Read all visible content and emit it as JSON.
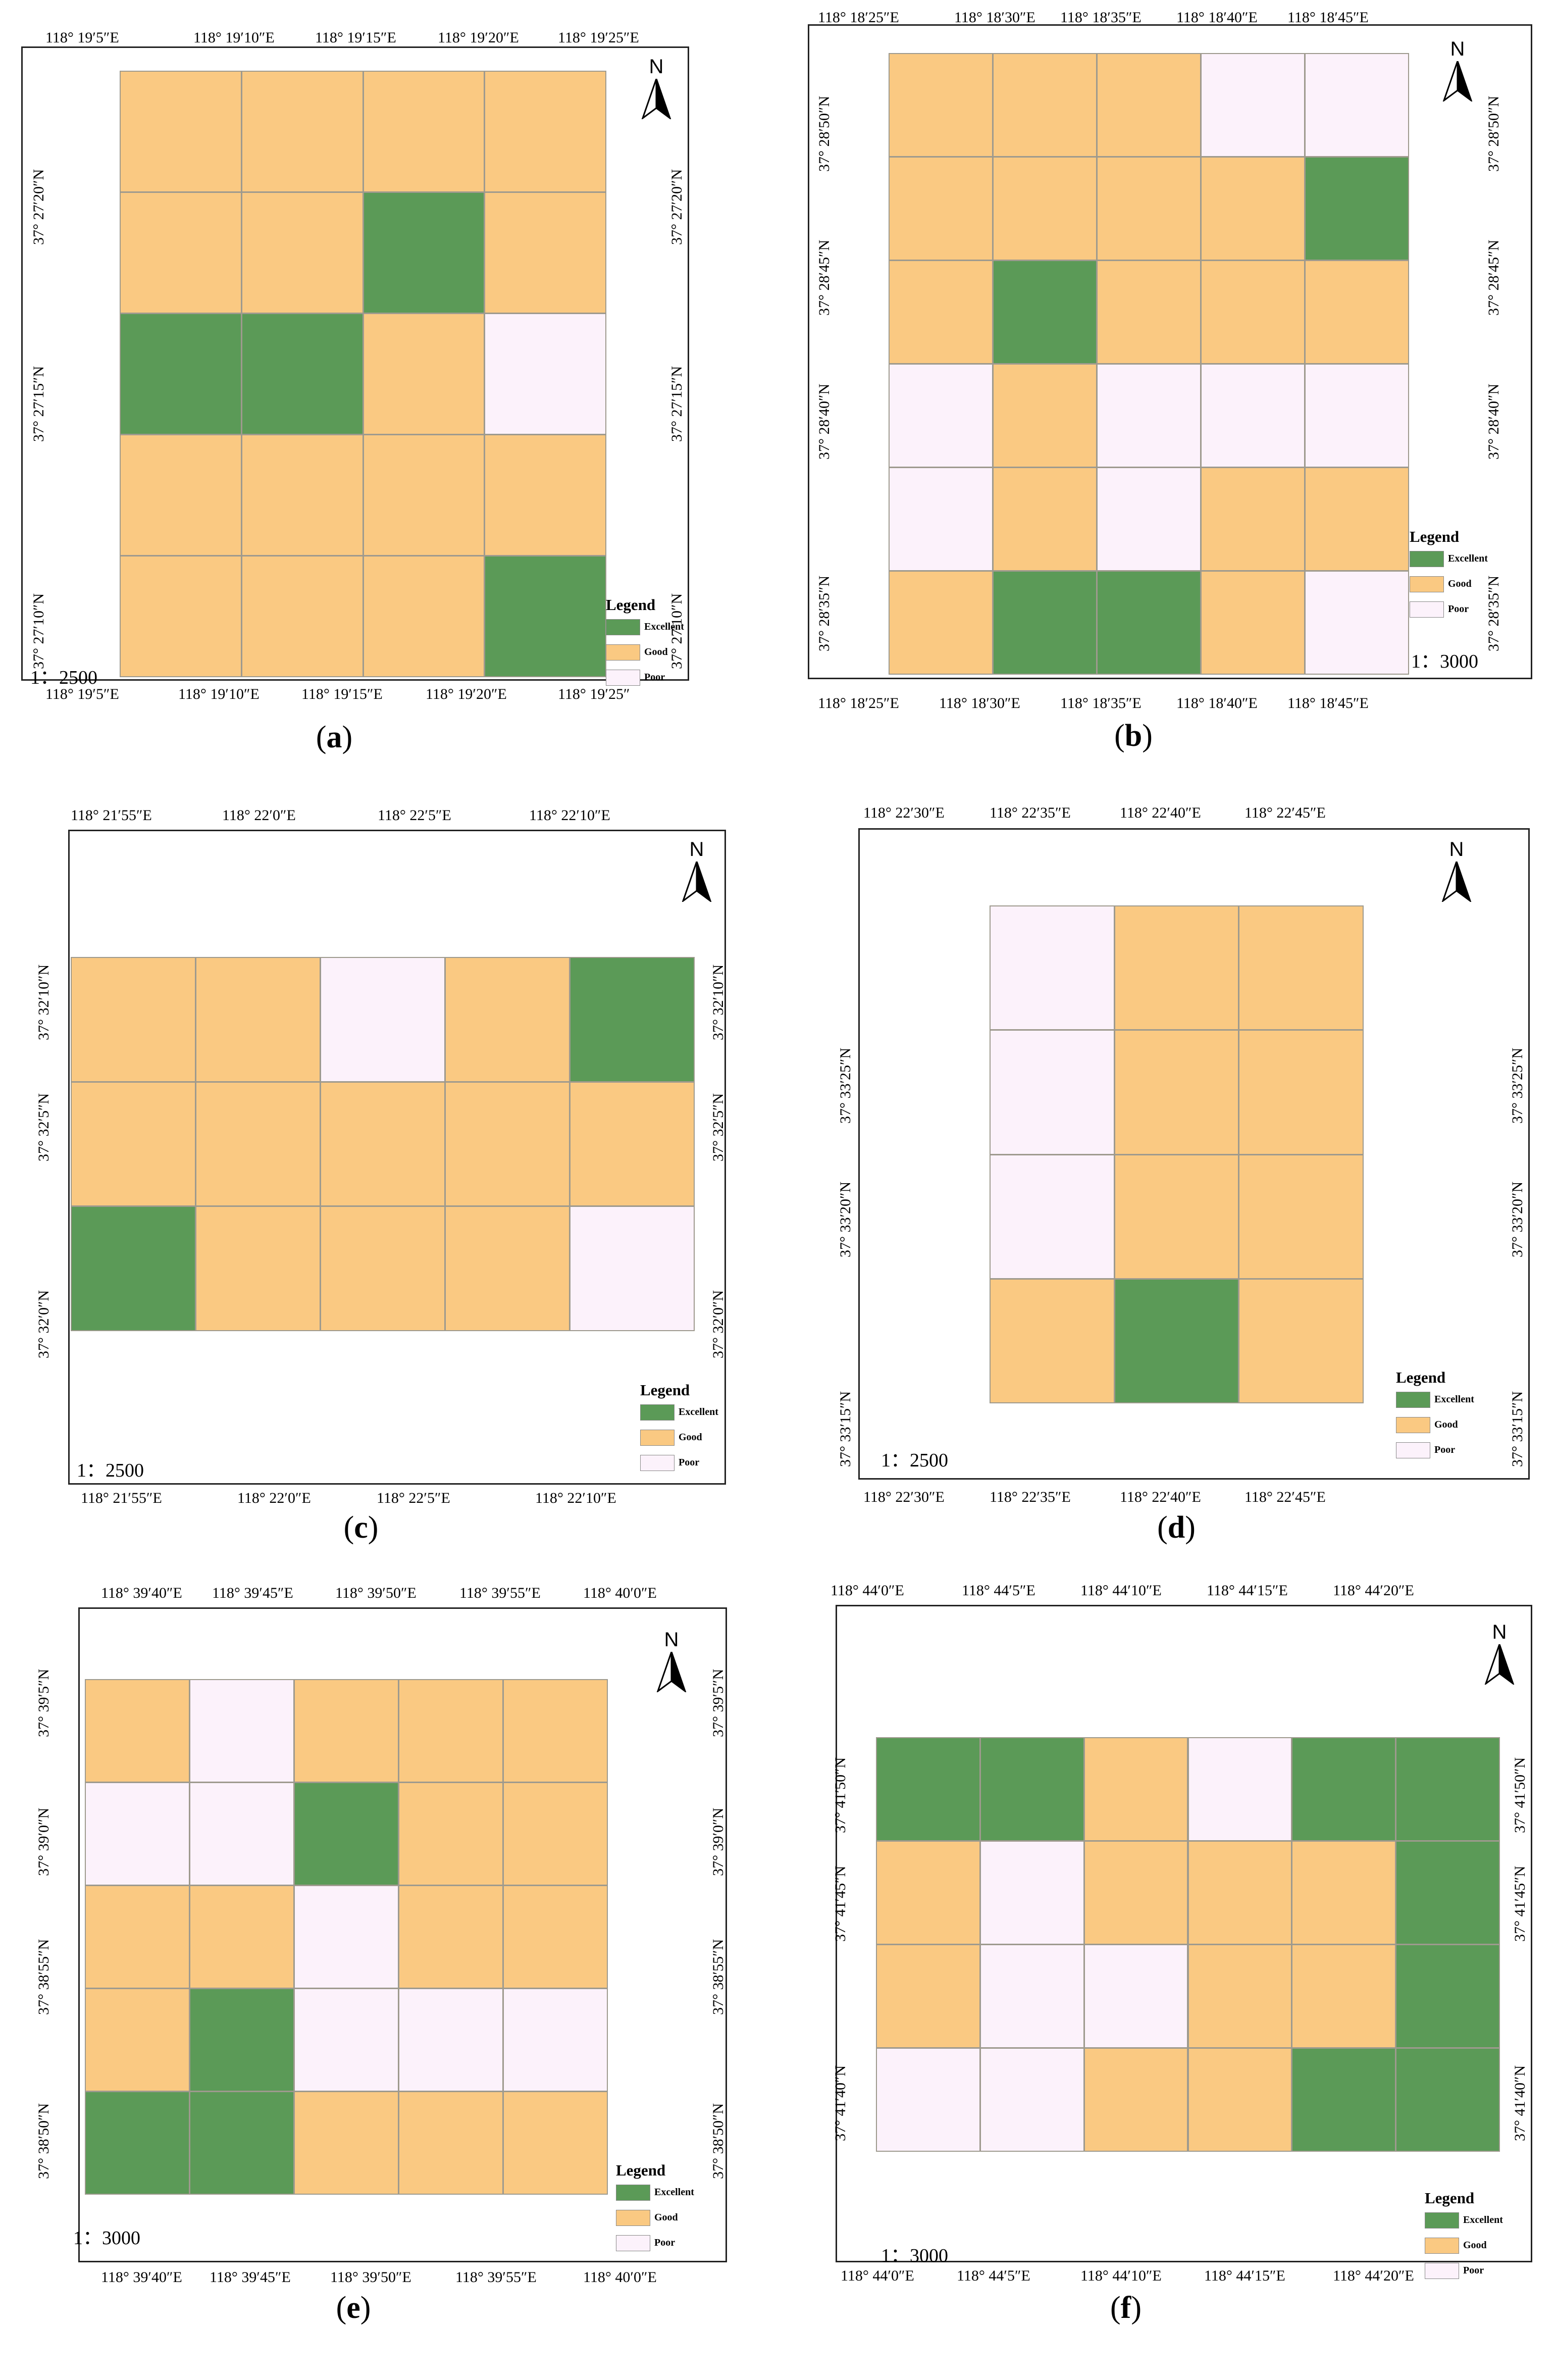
{
  "colors": {
    "Excellent": "#5b9a57",
    "Good": "#fac982",
    "Poor": "#fcf2fb"
  },
  "legend": {
    "title": "Legend",
    "items": [
      "Excellent",
      "Good",
      "Poor"
    ]
  },
  "north_label": "N",
  "panels": [
    {
      "caption": "(a)",
      "scale": "1：2500",
      "top_ticks": [
        "118° 19′5″E",
        "118° 19′10″E",
        "118° 19′15″E",
        "118° 19′20″E",
        "118° 19′25″E"
      ],
      "bottom_ticks": [
        "118° 19′5″E",
        "118° 19′10″E",
        "118° 19′15″E",
        "118° 19′20″E",
        "118° 19′25″"
      ],
      "left_ticks": [
        "37° 27′20″N",
        "37° 27′15″N",
        "37° 27′10″N"
      ],
      "right_ticks": [
        "37° 27′20″N",
        "37° 27′15″N",
        "37° 27′10″N"
      ],
      "grid": [
        [
          "Good",
          "Good",
          "Good",
          "Good"
        ],
        [
          "Good",
          "Good",
          "Excellent",
          "Good"
        ],
        [
          "Excellent",
          "Excellent",
          "Good",
          "Poor"
        ],
        [
          "Good",
          "Good",
          "Good",
          "Good"
        ],
        [
          "Good",
          "Good",
          "Good",
          "Excellent"
        ]
      ]
    },
    {
      "caption": "(b)",
      "scale": "1：3000",
      "top_ticks": [
        "118° 18′25″E",
        "118° 18′30″E",
        "118° 18′35″E",
        "118° 18′40″E",
        "118° 18′45″E"
      ],
      "bottom_ticks": [
        "118° 18′25″E",
        "118° 18′30″E",
        "118° 18′35″E",
        "118° 18′40″E",
        "118° 18′45″E"
      ],
      "left_ticks": [
        "37° 28′50″N",
        "37° 28′45″N",
        "37° 28′40″N",
        "37° 28′35″N"
      ],
      "right_ticks": [
        "37° 28′50″N",
        "37° 28′45″N",
        "37° 28′40″N",
        "37° 28′35″N"
      ],
      "grid": [
        [
          "Good",
          "Good",
          "Good",
          "Poor",
          "Poor"
        ],
        [
          "Good",
          "Good",
          "Good",
          "Good",
          "Excellent"
        ],
        [
          "Good",
          "Excellent",
          "Good",
          "Good",
          "Good"
        ],
        [
          "Poor",
          "Good",
          "Poor",
          "Poor",
          "Poor"
        ],
        [
          "Poor",
          "Good",
          "Poor",
          "Good",
          "Good"
        ],
        [
          "Good",
          "Excellent",
          "Excellent",
          "Good",
          "Poor"
        ]
      ]
    },
    {
      "caption": "(c)",
      "scale": "1：2500",
      "top_ticks": [
        "118° 21′55″E",
        "118° 22′0″E",
        "118° 22′5″E",
        "118° 22′10″E"
      ],
      "bottom_ticks": [
        "118° 21′55″E",
        "118° 22′0″E",
        "118° 22′5″E",
        "118° 22′10″E"
      ],
      "left_ticks": [
        "37° 32′10″N",
        "37° 32′5″N",
        "37° 32′0″N"
      ],
      "right_ticks": [
        "37° 32′10″N",
        "37° 32′5″N",
        "37° 32′0″N"
      ],
      "grid": [
        [
          "Good",
          "Good",
          "Poor",
          "Good",
          "Excellent"
        ],
        [
          "Good",
          "Good",
          "Good",
          "Good",
          "Good"
        ],
        [
          "Excellent",
          "Good",
          "Good",
          "Good",
          "Poor"
        ]
      ]
    },
    {
      "caption": "(d)",
      "scale": "1：2500",
      "top_ticks": [
        "118° 22′30″E",
        "118° 22′35″E",
        "118° 22′40″E",
        "118° 22′45″E"
      ],
      "bottom_ticks": [
        "118° 22′30″E",
        "118° 22′35″E",
        "118° 22′40″E",
        "118° 22′45″E"
      ],
      "left_ticks": [
        "37° 33′25″N",
        "37° 33′20″N",
        "37° 33′15″N"
      ],
      "right_ticks": [
        "37° 33′25″N",
        "37° 33′20″N",
        "37° 33′15″N"
      ],
      "grid": [
        [
          "Poor",
          "Good",
          "Good"
        ],
        [
          "Poor",
          "Good",
          "Good"
        ],
        [
          "Poor",
          "Good",
          "Good"
        ],
        [
          "Good",
          "Excellent",
          "Good"
        ]
      ]
    },
    {
      "caption": "(e)",
      "scale": "1：3000",
      "top_ticks": [
        "118° 39′40″E",
        "118° 39′45″E",
        "118° 39′50″E",
        "118° 39′55″E",
        "118° 40′0″E"
      ],
      "bottom_ticks": [
        "118° 39′40″E",
        "118° 39′45″E",
        "118° 39′50″E",
        "118° 39′55″E",
        "118° 40′0″E"
      ],
      "left_ticks": [
        "37° 39′5″N",
        "37° 39′0″N",
        "37° 38′55″N",
        "37° 38′50″N"
      ],
      "right_ticks": [
        "37° 39′5″N",
        "37° 39′0″N",
        "37° 38′55″N",
        "37° 38′50″N"
      ],
      "grid": [
        [
          "Good",
          "Poor",
          "Good",
          "Good",
          "Good"
        ],
        [
          "Poor",
          "Poor",
          "Excellent",
          "Good",
          "Good"
        ],
        [
          "Good",
          "Good",
          "Poor",
          "Good",
          "Good"
        ],
        [
          "Good",
          "Excellent",
          "Poor",
          "Poor",
          "Poor"
        ],
        [
          "Excellent",
          "Excellent",
          "Good",
          "Good",
          "Good"
        ]
      ]
    },
    {
      "caption": "(f)",
      "scale": "1：3000",
      "top_ticks": [
        "118° 44′0″E",
        "118° 44′5″E",
        "118° 44′10″E",
        "118° 44′15″E",
        "118° 44′20″E"
      ],
      "bottom_ticks": [
        "118° 44′0″E",
        "118° 44′5″E",
        "118° 44′10″E",
        "118° 44′15″E",
        "118° 44′20″E"
      ],
      "left_ticks": [
        "37° 41′50″N",
        "37° 41′45″N",
        "37° 41′40″N"
      ],
      "right_ticks": [
        "37° 41′50″N",
        "37° 41′45″N",
        "37° 41′40″N"
      ],
      "grid": [
        [
          "Excellent",
          "Excellent",
          "Good",
          "Poor",
          "Excellent",
          "Excellent"
        ],
        [
          "Good",
          "Poor",
          "Good",
          "Good",
          "Good",
          "Excellent"
        ],
        [
          "Good",
          "Poor",
          "Poor",
          "Good",
          "Good",
          "Excellent"
        ],
        [
          "Poor",
          "Poor",
          "Good",
          "Good",
          "Excellent",
          "Excellent"
        ]
      ]
    }
  ]
}
